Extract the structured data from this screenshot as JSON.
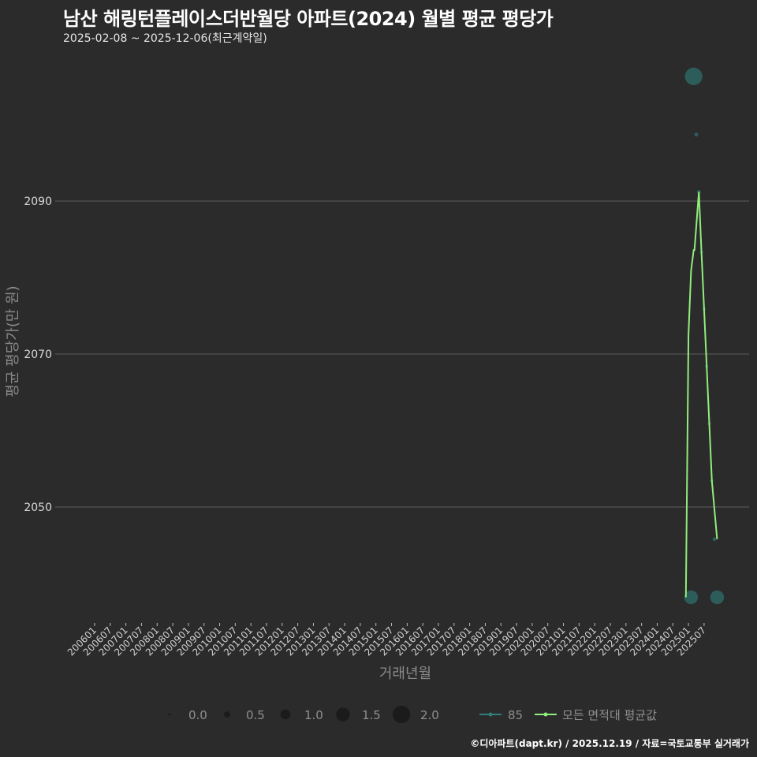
{
  "title": "남산 해링턴플레이스더반월당 아파트(2024) 월별 평균 평당가",
  "subtitle": "2025-02-08 ~ 2025-12-06(최근계약일)",
  "caption": "©디아파트(dapt.kr) / 2025.12.19 / 자료=국토교통부 실거래가",
  "colors": {
    "background": "#2b2b2b",
    "grid": "#5e5e5e",
    "series_85": "#2f7f7a",
    "series_avg": "#90ee7a"
  },
  "chart_data": {
    "type": "line",
    "title": "남산 해링턴플레이스더반월당 아파트(2024) 월별 평균 평당가",
    "xlabel": "거래년월",
    "ylabel": "평균 평당가(만 원)",
    "ylim": [
      2031,
      2122
    ],
    "yticks": [
      2050,
      2070,
      2090
    ],
    "xticks": [
      "200601",
      "200607",
      "200701",
      "200707",
      "200801",
      "200807",
      "200901",
      "200907",
      "201001",
      "201007",
      "201101",
      "201107",
      "201201",
      "201207",
      "201301",
      "201307",
      "201401",
      "201407",
      "201501",
      "201507",
      "201601",
      "201607",
      "201701",
      "201707",
      "201801",
      "201807",
      "201901",
      "201907",
      "202001",
      "202007",
      "202101",
      "202107",
      "202201",
      "202207",
      "202301",
      "202307",
      "202401",
      "202407",
      "202501",
      "202507"
    ],
    "grid": "horizontal",
    "series": [
      {
        "name": "85",
        "kind": "scatter",
        "x": [
          "202502",
          "202503",
          "202504",
          "202505",
          "202506",
          "202507",
          "202508",
          "202509",
          "202510",
          "202511",
          "202512"
        ],
        "values": [
          2038.2,
          2106.3,
          2098.7,
          2091.2,
          2083.3,
          2075.9,
          2068.4,
          2060.9,
          2053.4,
          2045.8,
          2038.2
        ],
        "sizes": [
          1.5,
          2.0,
          0.2,
          0.2,
          0.1,
          0.1,
          0.1,
          0.1,
          0.1,
          0.2,
          1.5
        ]
      },
      {
        "name": "모든 면적대 평균값",
        "kind": "line",
        "x": [
          "202412",
          "202501",
          "202502",
          "202503",
          "202503b",
          "202505",
          "202506",
          "202507",
          "202508",
          "202509",
          "202510",
          "202512"
        ],
        "values": [
          2038.2,
          2072.5,
          2080.9,
          2083.6,
          2083.6,
          2091.2,
          2083.3,
          2075.9,
          2068.4,
          2060.9,
          2053.4,
          2045.8
        ]
      }
    ],
    "size_legend": {
      "title": "",
      "values": [
        "0.0",
        "0.5",
        "1.0",
        "1.5",
        "2.0"
      ]
    },
    "legend": {
      "placement": "bottom",
      "entries": [
        "85",
        "모든 면적대 평균값"
      ]
    }
  }
}
